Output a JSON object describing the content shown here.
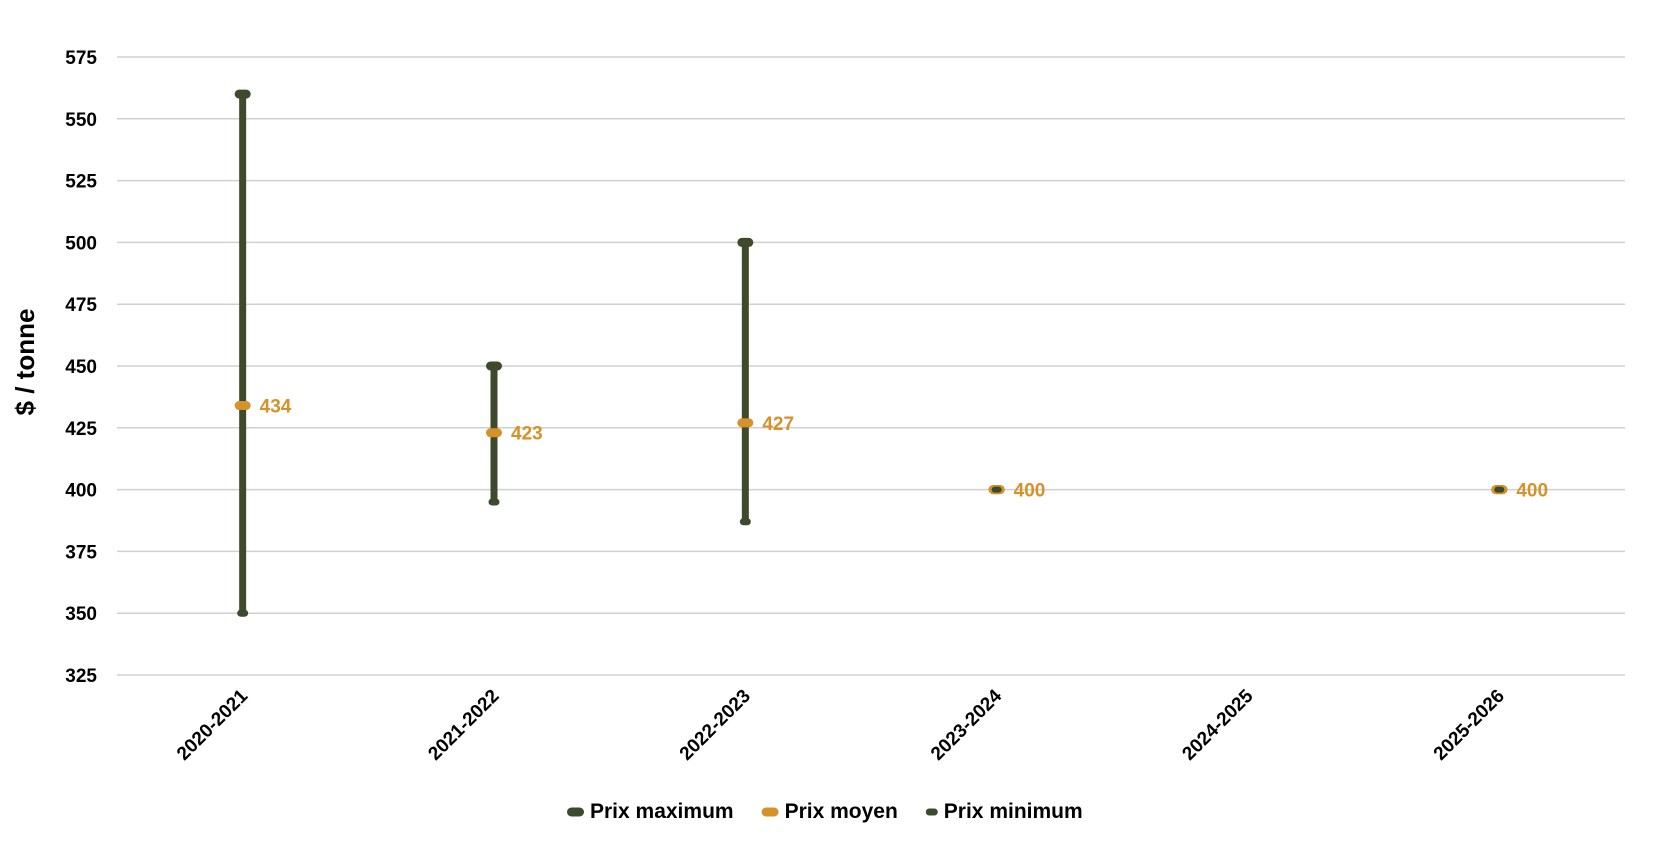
{
  "chart_data": {
    "type": "range",
    "title": "",
    "xlabel": "",
    "ylabel": "$ / tonne",
    "ylim": [
      325,
      575
    ],
    "ytick_step": 25,
    "grid": true,
    "legend_position": "bottom",
    "categories": [
      "2020-2021",
      "2021-2022",
      "2022-2023",
      "2023-2024",
      "2024-2025",
      "2025-2026"
    ],
    "series": [
      {
        "name": "Prix maximum",
        "color": "#3d4a2c",
        "values": [
          560,
          450,
          500,
          400,
          null,
          400
        ]
      },
      {
        "name": "Prix moyen",
        "color": "#d6922a",
        "values": [
          434,
          423,
          427,
          400,
          null,
          400
        ]
      },
      {
        "name": "Prix minimum",
        "color": "#3d4a2c",
        "values": [
          350,
          395,
          387,
          400,
          null,
          400
        ]
      }
    ],
    "data_labels": [
      "434",
      "423",
      "427",
      "400",
      "",
      "400"
    ]
  }
}
